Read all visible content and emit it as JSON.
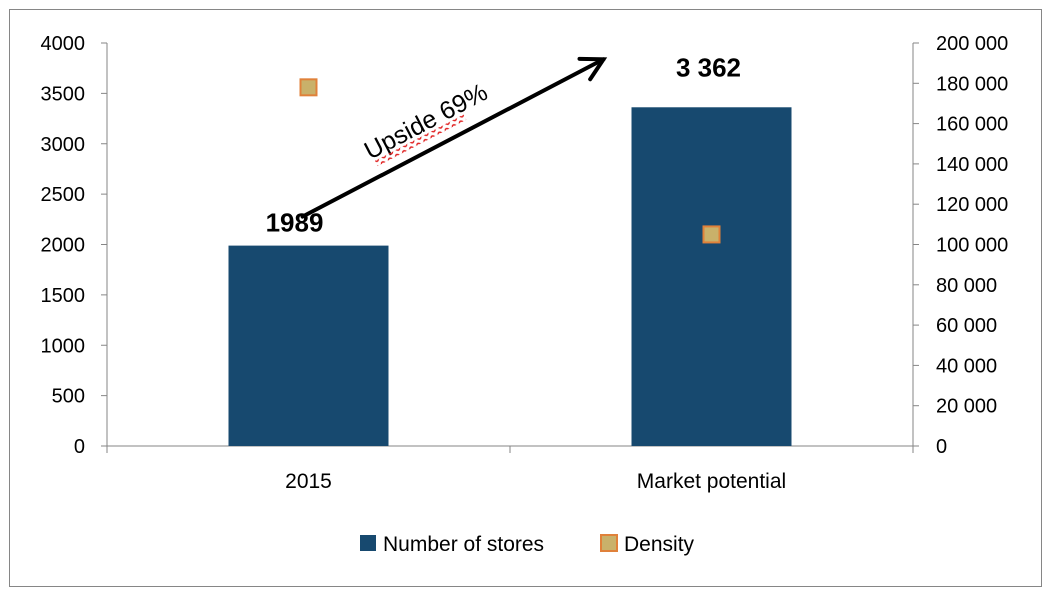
{
  "chart_data": {
    "type": "bar",
    "categories": [
      "2015",
      "Market potential"
    ],
    "series": [
      {
        "name": "Number of stores",
        "kind": "bar",
        "axis": "left",
        "color": "#17496f",
        "values": [
          1989,
          3362
        ],
        "labels": [
          "1989",
          "3 362"
        ]
      },
      {
        "name": "Density",
        "kind": "marker",
        "axis": "right",
        "color": "#c9b16a",
        "edge_color": "#e0813a",
        "values": [
          178000,
          105000
        ]
      }
    ],
    "y_left": {
      "min": 0,
      "max": 4000,
      "step": 500,
      "ticks": [
        "0",
        "500",
        "1000",
        "1500",
        "2000",
        "2500",
        "3000",
        "3500",
        "4000"
      ]
    },
    "y_right": {
      "min": 0,
      "max": 200000,
      "step": 20000,
      "ticks": [
        "0",
        "20 000",
        "40 000",
        "60 000",
        "80 000",
        "100 000",
        "120 000",
        "140 000",
        "160 000",
        "180 000",
        "200 000"
      ]
    },
    "annotation": {
      "text": "Upside 69%",
      "from_category": "2015",
      "to_category": "Market potential"
    },
    "legend": {
      "placement": "bottom"
    },
    "grid": false
  }
}
